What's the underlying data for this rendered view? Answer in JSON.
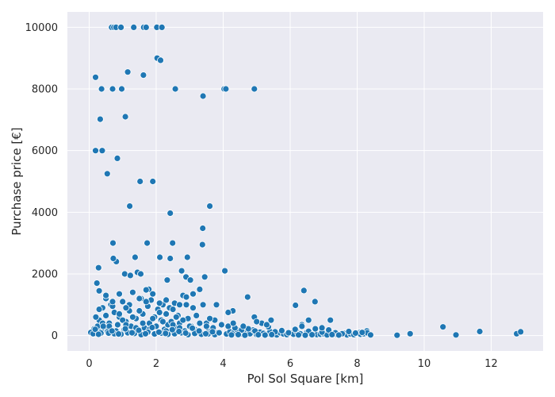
{
  "chart_data": {
    "type": "scatter",
    "title": "",
    "xlabel": "Pol Sol Square [km]",
    "ylabel": "Purchase price [€]",
    "xlim": [
      -0.65,
      13.55
    ],
    "ylim": [
      -500,
      10500
    ],
    "xticks": [
      0,
      2,
      4,
      6,
      8,
      10,
      12
    ],
    "yticks": [
      0,
      2000,
      4000,
      6000,
      8000,
      10000
    ],
    "grid": true,
    "legend": "none",
    "colors": {
      "background": "#eaeaf2",
      "grid": "#ffffff",
      "marker": "#1f77b4",
      "marker_edge": "#ffffff"
    },
    "x": [
      0.67,
      0.74,
      0.8,
      0.95,
      1.33,
      1.63,
      1.7,
      2.02,
      2.17,
      2.03,
      2.13,
      0.19,
      0.37,
      0.7,
      0.97,
      1.15,
      1.62,
      2.57,
      3.4,
      4.03,
      4.08,
      4.93,
      0.33,
      0.19,
      0.39,
      1.08,
      0.84,
      0.54,
      1.52,
      1.9,
      1.21,
      2.42,
      3.6,
      0.71,
      0.81,
      1.73,
      2.49,
      3.39,
      3.38,
      0.28,
      2.11,
      2.93,
      2.42,
      1.37,
      0.23,
      1.06,
      1.23,
      1.44,
      1.54,
      2.33,
      2.76,
      2.89,
      3.02,
      4.05,
      4.73,
      6.41,
      6.74,
      6.16,
      4.93,
      5.43,
      3.45,
      4.29,
      4.15,
      0.72,
      1.78,
      9.19,
      9.58,
      10.56,
      10.95,
      11.66,
      12.76,
      12.88,
      8.29,
      8.05,
      7.61,
      7.22,
      6.88,
      0.1,
      0.15,
      0.2,
      0.25,
      0.3,
      0.35,
      0.4,
      0.45,
      0.5,
      0.55,
      0.6,
      0.65,
      0.75,
      0.85,
      0.9,
      1.0,
      1.05,
      1.1,
      1.2,
      1.25,
      1.3,
      1.4,
      1.45,
      1.55,
      1.6,
      1.65,
      1.75,
      1.8,
      1.85,
      1.95,
      2.0,
      2.05,
      2.15,
      2.2,
      2.25,
      2.3,
      2.35,
      2.45,
      2.55,
      2.6,
      2.65,
      2.7,
      2.8,
      2.85,
      2.95,
      3.05,
      3.1,
      3.15,
      3.2,
      3.3,
      3.5,
      3.55,
      3.65,
      3.75,
      3.85,
      3.95,
      0.2,
      0.3,
      0.4,
      0.5,
      0.6,
      0.7,
      0.8,
      0.9,
      1.0,
      1.1,
      1.2,
      1.3,
      1.4,
      1.5,
      1.6,
      1.7,
      1.8,
      1.9,
      2.0,
      2.1,
      2.2,
      2.3,
      2.4,
      2.5,
      2.6,
      2.7,
      2.8,
      2.9,
      3.0,
      3.1,
      3.2,
      3.3,
      3.4,
      3.5,
      3.6,
      3.7,
      3.8,
      0.15,
      0.35,
      0.55,
      0.75,
      0.95,
      1.15,
      1.35,
      1.55,
      1.75,
      1.95,
      2.15,
      2.35,
      2.55,
      2.75,
      2.95,
      3.15,
      3.35,
      3.55,
      3.75,
      0.3,
      0.5,
      0.7,
      0.9,
      1.1,
      1.3,
      1.5,
      1.7,
      1.9,
      2.1,
      2.3,
      2.5,
      2.7,
      2.9,
      3.1,
      3.3,
      0.05,
      0.12,
      0.18,
      0.28,
      0.42,
      0.58,
      0.68,
      0.88,
      1.08,
      1.28,
      1.48,
      1.68,
      1.88,
      2.08,
      2.28,
      2.48,
      2.68,
      2.88,
      3.08,
      3.28,
      3.48,
      3.68,
      3.88,
      4.1,
      4.2,
      4.3,
      4.4,
      4.5,
      4.6,
      4.7,
      4.8,
      4.9,
      5.0,
      5.1,
      5.2,
      5.3,
      5.4,
      5.5,
      5.6,
      5.7,
      5.8,
      5.9,
      6.0,
      6.1,
      6.2,
      6.3,
      6.5,
      6.6,
      6.7,
      6.8,
      6.9,
      7.0,
      7.1,
      7.3,
      7.4,
      7.5,
      7.6,
      7.7,
      7.8,
      7.9,
      8.0,
      8.1,
      8.2,
      8.3,
      4.15,
      4.35,
      4.55,
      4.75,
      4.95,
      5.15,
      5.35,
      5.55,
      5.75,
      5.95,
      6.15,
      6.35,
      6.55,
      6.75,
      6.95,
      7.15,
      7.35,
      7.55,
      7.75,
      7.95,
      8.15,
      4.25,
      4.45,
      4.65,
      5.05,
      5.25,
      5.45,
      6.25,
      6.45,
      6.65,
      7.25,
      7.45,
      8.4,
      4.3,
      4.6,
      5.0,
      5.3,
      6.35,
      6.55,
      6.95,
      7.2
    ],
    "y": [
      10000,
      10000,
      10000,
      10000,
      10000,
      10000,
      10000,
      10000,
      10000,
      9000,
      8930,
      8380,
      8000,
      8000,
      8000,
      8550,
      8450,
      8000,
      7770,
      8000,
      8000,
      8000,
      7020,
      6000,
      6000,
      7100,
      5750,
      5250,
      5000,
      5000,
      4200,
      3970,
      4200,
      3000,
      2400,
      3000,
      3000,
      3480,
      2950,
      2200,
      2540,
      2540,
      2500,
      2540,
      1700,
      2000,
      1950,
      2050,
      2000,
      1800,
      2100,
      1900,
      1800,
      2100,
      1250,
      1460,
      1100,
      980,
      600,
      500,
      1900,
      800,
      750,
      2500,
      1500,
      10,
      60,
      280,
      20,
      130,
      60,
      120,
      150,
      100,
      80,
      60,
      40,
      150,
      220,
      80,
      300,
      500,
      120,
      900,
      250,
      650,
      180,
      400,
      1000,
      750,
      350,
      600,
      1100,
      200,
      450,
      800,
      300,
      1400,
      550,
      150,
      1200,
      700,
      250,
      950,
      400,
      1150,
      600,
      300,
      850,
      500,
      1000,
      200,
      700,
      350,
      450,
      1050,
      250,
      650,
      400,
      1300,
      150,
      550,
      300,
      900,
      200,
      650,
      100,
      400,
      250,
      150,
      500,
      100,
      350,
      600,
      850,
      400,
      1200,
      300,
      950,
      150,
      700,
      500,
      350,
      1000,
      600,
      250,
      800,
      400,
      1100,
      200,
      550,
      300,
      750,
      450,
      150,
      900,
      350,
      600,
      250,
      500,
      1000,
      300,
      200,
      650,
      400,
      1000,
      300,
      550,
      250,
      1000,
      50,
      80,
      120,
      60,
      40,
      90,
      70,
      30,
      110,
      50,
      80,
      40,
      60,
      90,
      30,
      70,
      40,
      50,
      30,
      1450,
      1300,
      1100,
      1350,
      900,
      1400,
      1200,
      1480,
      1350,
      1050,
      1150,
      850,
      1000,
      1250,
      1350,
      1500,
      100,
      60,
      200,
      40,
      300,
      80,
      150,
      50,
      220,
      90,
      170,
      60,
      260,
      110,
      70,
      190,
      130,
      80,
      240,
      150,
      60,
      120,
      90,
      50,
      120,
      80,
      200,
      40,
      150,
      90,
      60,
      180,
      30,
      110,
      70,
      40,
      130,
      60,
      20,
      90,
      50,
      30,
      80,
      40,
      120,
      60,
      100,
      70,
      50,
      30,
      40,
      60,
      20,
      50,
      30,
      40,
      70,
      20,
      50,
      30,
      80,
      40,
      60,
      90,
      300,
      250,
      180,
      220,
      150,
      400,
      280,
      120,
      160,
      90,
      200,
      350,
      140,
      220,
      110,
      180,
      90,
      60,
      130,
      80,
      100,
      20,
      30,
      10,
      25,
      15,
      30,
      20,
      10,
      25,
      30,
      15,
      20,
      400,
      300,
      450,
      350,
      300,
      500,
      250,
      500
    ]
  }
}
